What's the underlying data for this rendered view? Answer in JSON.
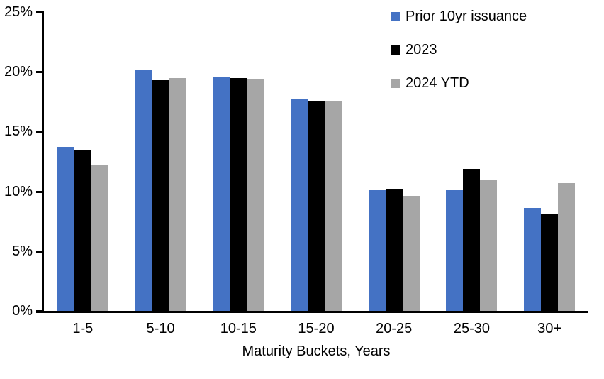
{
  "chart_data": {
    "type": "bar",
    "title": "",
    "xlabel": "Maturity Buckets, Years",
    "ylabel": "",
    "ylim": [
      0,
      25
    ],
    "yticks": [
      0,
      5,
      10,
      15,
      20,
      25
    ],
    "ytick_labels": [
      "0%",
      "5%",
      "10%",
      "15%",
      "20%",
      "25%"
    ],
    "grid": false,
    "legend_position": "top-right-inside",
    "categories": [
      "1-5",
      "5-10",
      "10-15",
      "15-20",
      "20-25",
      "25-30",
      "30+"
    ],
    "series": [
      {
        "name": "Prior 10yr issuance",
        "color": "#4472C4",
        "values": [
          13.7,
          20.2,
          19.6,
          17.7,
          10.1,
          10.1,
          8.6
        ]
      },
      {
        "name": "2023",
        "color": "#000000",
        "values": [
          13.5,
          19.3,
          19.5,
          17.5,
          10.2,
          11.9,
          8.1
        ]
      },
      {
        "name": "2024 YTD",
        "color": "#A6A6A6",
        "values": [
          12.2,
          19.5,
          19.4,
          17.6,
          9.6,
          11.0,
          10.7
        ]
      }
    ]
  },
  "colors": {
    "axis": "#000000",
    "background": "#FFFFFF"
  }
}
